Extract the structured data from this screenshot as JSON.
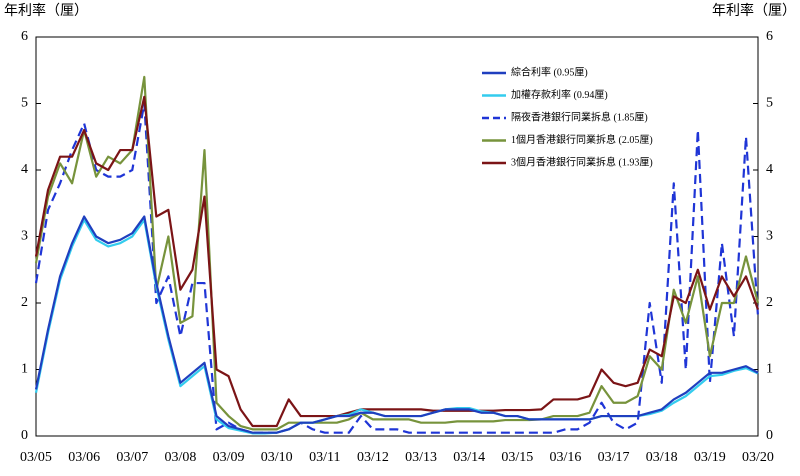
{
  "chart_data": {
    "type": "line",
    "y_label": "年利率（厘）",
    "y2_label": "年利率（厘）",
    "categories": [
      "03/05",
      null,
      null,
      null,
      "03/06",
      null,
      null,
      null,
      "03/07",
      null,
      null,
      null,
      "03/08",
      null,
      null,
      null,
      "03/09",
      null,
      null,
      null,
      "03/10",
      null,
      null,
      null,
      "03/11",
      null,
      null,
      null,
      "03/12",
      null,
      null,
      null,
      "03/13",
      null,
      null,
      null,
      "03/14",
      null,
      null,
      null,
      "03/15",
      null,
      null,
      null,
      "03/16",
      null,
      null,
      null,
      "03/17",
      null,
      null,
      null,
      "03/18",
      null,
      null,
      null,
      "03/19",
      null,
      null,
      null,
      "03/20"
    ],
    "ylim": [
      0,
      6
    ],
    "yticks": [
      0,
      1,
      2,
      3,
      4,
      5,
      6
    ],
    "y2lim": [
      0,
      6
    ],
    "y2ticks": [
      0,
      1,
      2,
      3,
      4,
      5,
      6
    ],
    "legend": "upper-right",
    "series": [
      {
        "name": "隔夜香港銀行同業拆息 (1.85厘)",
        "color": "#1f35d6",
        "dashed": true,
        "values": [
          2.3,
          3.4,
          3.8,
          4.3,
          4.7,
          4.0,
          3.9,
          3.9,
          4.0,
          5.0,
          2.0,
          2.4,
          1.5,
          2.3,
          2.3,
          0.1,
          0.2,
          0.1,
          0.05,
          0.05,
          0.05,
          0.1,
          0.2,
          0.1,
          0.05,
          0.05,
          0.05,
          0.3,
          0.1,
          0.1,
          0.1,
          0.05,
          0.05,
          0.05,
          0.05,
          0.05,
          0.05,
          0.05,
          0.05,
          0.05,
          0.05,
          0.05,
          0.05,
          0.05,
          0.1,
          0.1,
          0.2,
          0.5,
          0.2,
          0.1,
          0.2,
          2.0,
          0.8,
          3.8,
          1.0,
          4.6,
          0.8,
          2.9,
          1.5,
          4.5,
          1.8
        ]
      },
      {
        "name": "1個月香港銀行同業拆息 (2.05厘)",
        "color": "#77933c",
        "values": [
          2.6,
          3.6,
          4.1,
          3.8,
          4.6,
          3.9,
          4.2,
          4.1,
          4.3,
          5.4,
          2.2,
          3.0,
          1.7,
          1.8,
          4.3,
          0.5,
          0.3,
          0.15,
          0.1,
          0.1,
          0.1,
          0.2,
          0.2,
          0.2,
          0.2,
          0.2,
          0.25,
          0.35,
          0.25,
          0.25,
          0.25,
          0.25,
          0.2,
          0.2,
          0.2,
          0.22,
          0.22,
          0.22,
          0.22,
          0.24,
          0.24,
          0.24,
          0.25,
          0.3,
          0.3,
          0.3,
          0.35,
          0.75,
          0.5,
          0.5,
          0.6,
          1.2,
          1.0,
          2.2,
          1.7,
          2.4,
          1.2,
          2.0,
          2.0,
          2.7,
          2.0
        ]
      },
      {
        "name": "3個月香港銀行同業拆息 (1.93厘)",
        "color": "#7b1416",
        "values": [
          2.7,
          3.7,
          4.2,
          4.2,
          4.6,
          4.1,
          4.0,
          4.3,
          4.3,
          5.1,
          3.3,
          3.4,
          2.2,
          2.5,
          3.6,
          1.0,
          0.9,
          0.4,
          0.15,
          0.15,
          0.15,
          0.55,
          0.3,
          0.3,
          0.3,
          0.3,
          0.35,
          0.4,
          0.4,
          0.4,
          0.4,
          0.4,
          0.4,
          0.38,
          0.38,
          0.38,
          0.38,
          0.38,
          0.38,
          0.39,
          0.39,
          0.39,
          0.4,
          0.55,
          0.55,
          0.55,
          0.6,
          1.0,
          0.8,
          0.75,
          0.8,
          1.3,
          1.2,
          2.1,
          2.0,
          2.5,
          1.9,
          2.4,
          2.1,
          2.4,
          1.9
        ]
      },
      {
        "name": "加權存款利率 (0.94厘)",
        "color": "#33ccee",
        "values": [
          0.65,
          1.55,
          2.35,
          2.85,
          3.25,
          2.95,
          2.85,
          2.9,
          3.0,
          3.25,
          2.25,
          1.45,
          0.75,
          0.9,
          1.05,
          0.25,
          0.12,
          0.08,
          0.04,
          0.04,
          0.05,
          0.1,
          0.2,
          0.2,
          0.25,
          0.3,
          0.32,
          0.4,
          0.35,
          0.3,
          0.3,
          0.3,
          0.3,
          0.35,
          0.4,
          0.42,
          0.42,
          0.37,
          0.35,
          0.3,
          0.3,
          0.25,
          0.25,
          0.25,
          0.25,
          0.25,
          0.25,
          0.3,
          0.3,
          0.3,
          0.3,
          0.33,
          0.38,
          0.5,
          0.6,
          0.75,
          0.9,
          0.92,
          0.98,
          1.02,
          0.94
        ]
      },
      {
        "name": "綜合利率 (0.95厘)",
        "color": "#1f3fbf",
        "values": [
          0.7,
          1.6,
          2.4,
          2.9,
          3.3,
          3.0,
          2.9,
          2.95,
          3.05,
          3.3,
          2.3,
          1.5,
          0.8,
          0.95,
          1.1,
          0.3,
          0.15,
          0.1,
          0.05,
          0.05,
          0.05,
          0.1,
          0.2,
          0.2,
          0.25,
          0.3,
          0.3,
          0.35,
          0.35,
          0.3,
          0.3,
          0.3,
          0.3,
          0.35,
          0.4,
          0.4,
          0.4,
          0.35,
          0.35,
          0.3,
          0.3,
          0.25,
          0.25,
          0.25,
          0.25,
          0.25,
          0.25,
          0.3,
          0.3,
          0.3,
          0.3,
          0.35,
          0.4,
          0.55,
          0.65,
          0.8,
          0.95,
          0.95,
          1.0,
          1.05,
          0.95
        ]
      }
    ],
    "legend_order": [
      4,
      3,
      0,
      1,
      2
    ]
  }
}
